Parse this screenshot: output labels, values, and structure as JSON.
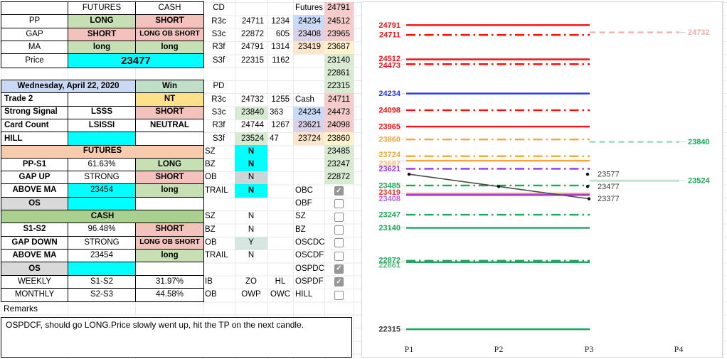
{
  "colors": {
    "green": "#c6e0b4",
    "pink": "#f3c2bd",
    "cyan": "#00ffff",
    "orangehdr": "#f8cbad",
    "greenhdr": "#a9d08e",
    "dateblue": "#c9d9f3",
    "wingreen": "#bfdfc9",
    "yellow": "#ffe08a",
    "gray": "#d9d9d9",
    "mblue": "#c9daf8",
    "mpurple": "#d9d2e9",
    "morange": "#fce5cd",
    "mpink": "#f4cccc",
    "myellow": "#fff2cc",
    "mgreen": "#d9ead3",
    "mgray": "#ccd6d9",
    "mteal": "#d8e6e2",
    "chart_red": "#f31111",
    "chart_blue": "#2337ee",
    "chart_orange": "#f4a733",
    "chart_purple": "#9833e8",
    "chart_green": "#1ea65a",
    "chart_orangered_label": "#f1342c",
    "chart_orange_solid": "#ff9d2e",
    "chart_fadedpink": "#f2aeaa",
    "chart_projgreen": "#8fd9b2",
    "chart_palegreen": "#c0e8d0",
    "chart_black": "#3a3a3a",
    "chart_leader": "#d9d9d9",
    "chart_axis_text": "#222222"
  },
  "left_table": {
    "columns": [
      94,
      95,
      95
    ],
    "blocks": [
      {
        "name": "signals",
        "row": 0,
        "rows": [
          [
            {
              "t": ""
            },
            {
              "t": "FUTURES"
            },
            {
              "t": "CASH"
            }
          ],
          [
            {
              "t": "PP"
            },
            {
              "t": "LONG",
              "bg": "green",
              "b": 1
            },
            {
              "t": "SHORT",
              "bg": "pink",
              "b": 1
            }
          ],
          [
            {
              "t": "GAP"
            },
            {
              "t": "SHORT",
              "bg": "pink",
              "b": 1
            },
            {
              "t": "LONG OB SHORT",
              "bg": "pink",
              "b": 1,
              "cls": "small"
            }
          ],
          [
            {
              "t": "MA"
            },
            {
              "t": "long",
              "bg": "green",
              "b": 1
            },
            {
              "t": "long",
              "bg": "green",
              "b": 1
            }
          ],
          [
            {
              "t": "Price"
            },
            {
              "t": "23477",
              "bg": "cyan",
              "span": 2,
              "cls": "price"
            }
          ]
        ]
      },
      {
        "name": "day",
        "row": 6,
        "rows": [
          [
            {
              "t": "Wednesday, April 22, 2020",
              "bg": "dateblue",
              "b": 1,
              "span": 2
            },
            {
              "t": "Win",
              "bg": "wingreen",
              "b": 1
            }
          ],
          [
            {
              "t": "Trade 2",
              "b": 1,
              "align": "left"
            },
            {
              "t": ""
            },
            {
              "t": "NT",
              "bg": "yellow",
              "b": 1
            }
          ],
          [
            {
              "t": "Strong Signal",
              "b": 1,
              "align": "left"
            },
            {
              "t": "LSSS",
              "b": 1
            },
            {
              "t": "SHORT",
              "bg": "pink",
              "b": 1
            }
          ],
          [
            {
              "t": "Card Count",
              "b": 1,
              "align": "left"
            },
            {
              "t": "LSISSI",
              "b": 1
            },
            {
              "t": "NEUTRAL",
              "b": 1
            }
          ],
          [
            {
              "t": "HILL",
              "b": 1,
              "align": "left"
            },
            {
              "t": "",
              "bg": "cyan"
            },
            {
              "t": ""
            }
          ]
        ]
      },
      {
        "name": "futures",
        "row": 11,
        "rows": [
          [
            {
              "t": "FUTURES",
              "bg": "orangehdr",
              "b": 1,
              "span": 3
            }
          ],
          [
            {
              "t": "PP-S1",
              "b": 1
            },
            {
              "t": "61.63%"
            },
            {
              "t": "LONG",
              "bg": "green",
              "b": 1
            }
          ],
          [
            {
              "t": "GAP UP",
              "b": 1
            },
            {
              "t": "STRONG"
            },
            {
              "t": "SHORT",
              "bg": "pink",
              "b": 1
            }
          ],
          [
            {
              "t": "ABOVE MA",
              "b": 1
            },
            {
              "t": "23454",
              "bg": "cyan"
            },
            {
              "t": "long",
              "bg": "green",
              "b": 1
            }
          ],
          [
            {
              "t": "OS",
              "bg": "gray",
              "b": 1
            },
            {
              "t": "",
              "bg": "cyan"
            },
            {
              "t": ""
            }
          ]
        ]
      },
      {
        "name": "cash",
        "row": 16,
        "rows": [
          [
            {
              "t": "CASH",
              "bg": "greenhdr",
              "b": 1,
              "span": 3
            }
          ],
          [
            {
              "t": "S1-S2",
              "b": 1
            },
            {
              "t": "96.48%"
            },
            {
              "t": "SHORT",
              "bg": "pink",
              "b": 1
            }
          ],
          [
            {
              "t": "GAP DOWN",
              "b": 1
            },
            {
              "t": "STRONG"
            },
            {
              "t": "LONG OB SHORT",
              "bg": "pink",
              "b": 1,
              "cls": "small"
            }
          ],
          [
            {
              "t": "ABOVE MA",
              "b": 1
            },
            {
              "t": "23454"
            },
            {
              "t": "long",
              "bg": "green",
              "b": 1
            }
          ],
          [
            {
              "t": "OS",
              "bg": "gray",
              "b": 1
            },
            {
              "t": "",
              "bg": "cyan"
            },
            {
              "t": ""
            }
          ]
        ]
      },
      {
        "name": "period",
        "row": 21,
        "rows": [
          [
            {
              "t": "WEEKLY"
            },
            {
              "t": "S1-S2"
            },
            {
              "t": "31.97%"
            }
          ],
          [
            {
              "t": "MONTHLY"
            },
            {
              "t": "S2-S3"
            },
            {
              "t": "44.58%"
            }
          ]
        ]
      }
    ],
    "remarks_label": "Remarks",
    "remarks_text": "OSPDCF, should go LONG.Price slowly went up, hit the TP on the next candle."
  },
  "mid_table": {
    "columns": [
      45,
      46,
      36,
      44,
      41
    ],
    "rows": [
      [
        {
          "t": "CD",
          "a": "c"
        },
        {},
        {},
        {
          "t": "Futures",
          "a": "l"
        },
        {
          "t": "24791",
          "bg": "mpink",
          "a": "r"
        }
      ],
      [
        {
          "t": "R3c",
          "a": "c"
        },
        {
          "t": "24711",
          "a": "r"
        },
        {
          "t": "1234",
          "a": "r"
        },
        {
          "t": "24234",
          "bg": "mblue",
          "a": "r"
        },
        {
          "t": "24512",
          "bg": "mpink",
          "a": "r"
        }
      ],
      [
        {
          "t": "S3c",
          "a": "c"
        },
        {
          "t": "22872",
          "a": "r"
        },
        {
          "t": "605",
          "a": "r"
        },
        {
          "t": "23408",
          "bg": "mpurple",
          "a": "r"
        },
        {
          "t": "23965",
          "bg": "mpink",
          "a": "r"
        }
      ],
      [
        {
          "t": "R3f",
          "a": "c"
        },
        {
          "t": "24791",
          "a": "r"
        },
        {
          "t": "1314",
          "a": "r"
        },
        {
          "t": "23419",
          "bg": "morange",
          "a": "r"
        },
        {
          "t": "23687",
          "bg": "myellow",
          "a": "r"
        }
      ],
      [
        {
          "t": "S3f",
          "a": "c"
        },
        {
          "t": "22315",
          "a": "r"
        },
        {
          "t": "1162",
          "a": "r"
        },
        {},
        {
          "t": "23140",
          "bg": "mgreen",
          "a": "r"
        }
      ],
      [
        {},
        {},
        {},
        {},
        {
          "t": "22861",
          "bg": "mgreen",
          "a": "r"
        }
      ],
      [
        {
          "t": "PD",
          "a": "c"
        },
        {},
        {},
        {},
        {
          "t": "22315",
          "bg": "mgreen",
          "a": "r"
        }
      ],
      [
        {
          "t": "R3c",
          "a": "c"
        },
        {
          "t": "24732",
          "a": "r"
        },
        {
          "t": "1255",
          "a": "r"
        },
        {
          "t": "Cash",
          "a": "l"
        },
        {
          "t": "24711",
          "bg": "mpink",
          "a": "r"
        }
      ],
      [
        {
          "t": "S3c",
          "a": "c"
        },
        {
          "t": "23840",
          "bg": "mgreen",
          "a": "r"
        },
        {
          "t": "363",
          "a": "l"
        },
        {
          "t": "24234",
          "bg": "mblue",
          "a": "r"
        },
        {
          "t": "24473",
          "bg": "mpink",
          "a": "r"
        }
      ],
      [
        {
          "t": "R3f",
          "a": "c"
        },
        {
          "t": "24744",
          "a": "r"
        },
        {
          "t": "1267",
          "a": "r"
        },
        {
          "t": "23621",
          "bg": "mpurple",
          "a": "r"
        },
        {
          "t": "24098",
          "bg": "mpink",
          "a": "r"
        }
      ],
      [
        {
          "t": "S3f",
          "a": "c"
        },
        {
          "t": "23524",
          "bg": "mgreen",
          "a": "r"
        },
        {
          "t": "47",
          "a": "l"
        },
        {
          "t": "23724",
          "bg": "morange",
          "a": "r"
        },
        {
          "t": "23860",
          "bg": "myellow",
          "a": "r"
        }
      ],
      [
        {
          "t": "SZ",
          "a": "l"
        },
        {
          "t": "N",
          "bg": "cyan",
          "a": "c",
          "b": 1
        },
        {},
        {},
        {
          "t": "23485",
          "bg": "mgreen",
          "a": "r"
        }
      ],
      [
        {
          "t": "BZ",
          "a": "l"
        },
        {
          "t": "N",
          "bg": "cyan",
          "a": "c",
          "b": 1
        },
        {},
        {},
        {
          "t": "23247",
          "bg": "mgreen",
          "a": "r"
        }
      ],
      [
        {
          "t": "OB",
          "a": "l"
        },
        {
          "t": "N",
          "bg": "mgray",
          "a": "c"
        },
        {},
        {},
        {
          "t": "22872",
          "bg": "mgreen",
          "a": "r"
        }
      ],
      [
        {
          "t": "TRAIL",
          "a": "l"
        },
        {
          "t": "N",
          "bg": "cyan",
          "a": "c",
          "b": 1
        },
        {},
        {
          "t": "OBC",
          "a": "l"
        },
        {
          "cb": true
        }
      ],
      [
        {},
        {},
        {},
        {
          "t": "OBF",
          "a": "l"
        },
        {
          "cb": false
        }
      ],
      [
        {
          "t": "SZ",
          "a": "l"
        },
        {
          "t": "N",
          "a": "c"
        },
        {},
        {
          "t": "SZ",
          "a": "l"
        },
        {
          "cb": false
        }
      ],
      [
        {
          "t": "BZ",
          "a": "l"
        },
        {
          "t": "N",
          "a": "c"
        },
        {},
        {
          "t": "BZ",
          "a": "l"
        },
        {
          "cb": false
        }
      ],
      [
        {
          "t": "OB",
          "a": "l"
        },
        {
          "t": "Y",
          "bg": "mteal",
          "a": "c"
        },
        {},
        {
          "t": "OSCDC",
          "a": "l"
        },
        {
          "cb": false
        }
      ],
      [
        {
          "t": "TRAIL",
          "a": "l"
        },
        {
          "t": "N",
          "a": "c"
        },
        {},
        {
          "t": "OSCDF",
          "a": "l"
        },
        {
          "cb": false
        }
      ],
      [
        {},
        {},
        {},
        {
          "t": "OSPDC",
          "a": "l"
        },
        {
          "cb": true
        }
      ],
      [
        {
          "t": "IB",
          "a": "l"
        },
        {
          "t": "ZO",
          "a": "c"
        },
        {
          "t": "HL",
          "a": "c"
        },
        {
          "t": "OSPDF",
          "a": "l"
        },
        {
          "cb": true
        }
      ],
      [
        {
          "t": "OB",
          "a": "l"
        },
        {
          "t": "OWP",
          "a": "c"
        },
        {
          "t": "OWC",
          "a": "c"
        },
        {
          "t": "HILL",
          "a": "l"
        },
        {
          "cb": false
        }
      ]
    ]
  },
  "chart_data": {
    "type": "line",
    "title": "",
    "x_categories": [
      "P1",
      "P2",
      "P3",
      "P4"
    ],
    "ylim": [
      22200,
      24920
    ],
    "grid": false,
    "legend": "none",
    "levels": [
      {
        "value": 24791,
        "color": "red",
        "style": "solid"
      },
      {
        "value": 24711,
        "color": "red",
        "style": "dashdot"
      },
      {
        "value": 24512,
        "color": "red",
        "style": "solid",
        "label_dy": -1
      },
      {
        "value": 24473,
        "color": "red",
        "style": "dashdot",
        "label_dy": 2
      },
      {
        "value": 24234,
        "color": "blue",
        "style": "solid"
      },
      {
        "value": 24098,
        "color": "red",
        "style": "dashdot"
      },
      {
        "value": 23965,
        "color": "red",
        "style": "solid"
      },
      {
        "value": 23860,
        "color": "orange",
        "style": "dashdot"
      },
      {
        "value": 23724,
        "color": "orange",
        "style": "dashdot",
        "label_dy": -2
      },
      {
        "value": 23687,
        "color": "orange",
        "style": "solid",
        "label_dy": 4,
        "label_faded": true
      },
      {
        "value": 23621,
        "color": "purple",
        "style": "dashdot"
      },
      {
        "value": 23485,
        "color": "green",
        "style": "dashdot"
      },
      {
        "value": 23419,
        "color": "orange_solid",
        "style": "solid",
        "label_color": "orangered_label",
        "label_dy": -2
      },
      {
        "value": 23408,
        "color": "purple",
        "style": "solid",
        "label_dy": 5,
        "label_faded": true
      },
      {
        "value": 23247,
        "color": "green",
        "style": "dashdot"
      },
      {
        "value": 23140,
        "color": "green",
        "style": "solid"
      },
      {
        "value": 22872,
        "color": "green",
        "style": "dashdot",
        "label_dy": -1
      },
      {
        "value": 22861,
        "color": "green",
        "style": "solid",
        "label_dy": 4,
        "label_faded": true
      },
      {
        "value": 22315,
        "color": "green",
        "style": "solid",
        "label_color": "black"
      }
    ],
    "projections": [
      {
        "value": 24732,
        "line_color": "fadedpink",
        "label_color": "fadedpink",
        "style": "dashed"
      },
      {
        "value": 23840,
        "line_color": "projgreen",
        "label_color": "green",
        "style": "dashed"
      },
      {
        "value": 23524,
        "line_color": "palegreen",
        "label_color": "green",
        "style": "solid"
      }
    ],
    "series": [
      {
        "name": "price",
        "color": "black",
        "x": [
          "P1",
          "P2",
          "P3"
        ],
        "values": [
          23577,
          23477,
          23377
        ],
        "labels": [
          "23577",
          "23477",
          "23377"
        ]
      }
    ]
  }
}
